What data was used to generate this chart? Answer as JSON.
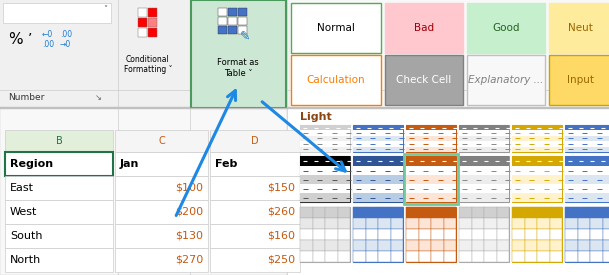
{
  "bg_color": "#f0f0f0",
  "spreadsheet": {
    "col_letters": [
      "B",
      "C",
      "D"
    ],
    "col_letter_colors": [
      "#217346",
      "#c55a11",
      "#c55a11"
    ],
    "col_headers": [
      "Region",
      "Jan",
      "Feb"
    ],
    "rows": [
      [
        "East",
        "$100",
        "$150"
      ],
      [
        "West",
        "$200",
        "$260"
      ],
      [
        "South",
        "$130",
        "$160"
      ],
      [
        "North",
        "$270",
        "$250"
      ]
    ]
  },
  "ribbon_styles": [
    {
      "label": "Normal",
      "bg": "#ffffff",
      "fg": "#000000",
      "border": "#4cae4c",
      "italic": false
    },
    {
      "label": "Bad",
      "bg": "#ffc7ce",
      "fg": "#9c0006",
      "border": "#ffc7ce",
      "italic": false
    },
    {
      "label": "Good",
      "bg": "#c6efce",
      "fg": "#276221",
      "border": "#c6efce",
      "italic": false
    },
    {
      "label": "Neut",
      "bg": "#ffeb9c",
      "fg": "#9c6500",
      "border": "#ffeb9c",
      "italic": false
    },
    {
      "label": "Calculation",
      "bg": "#ffffff",
      "fg": "#fa7d00",
      "border": "#fa7d00",
      "italic": false
    },
    {
      "label": "Check Cell",
      "bg": "#a5a5a5",
      "fg": "#ffffff",
      "border": "#808080",
      "italic": false
    },
    {
      "label": "Explanatory ...",
      "bg": "#f8f8f8",
      "fg": "#808080",
      "border": "#c0c0c0",
      "italic": true
    },
    {
      "label": "Input",
      "bg": "#ffd966",
      "fg": "#9c6500",
      "border": "#c8a400",
      "italic": false
    }
  ],
  "thumb_row1": [
    {
      "hc": "#d0d0d0",
      "sc": "#f0f0f0",
      "lc": "#888888",
      "bc": "#cccccc"
    },
    {
      "hc": "#4472c4",
      "sc": "#dce6f1",
      "lc": "#4472c4",
      "bc": "#4472c4"
    },
    {
      "hc": "#c55a11",
      "sc": "#fce4d6",
      "lc": "#c55a11",
      "bc": "#c55a11"
    },
    {
      "hc": "#808080",
      "sc": "#ededed",
      "lc": "#888888",
      "bc": "#999999"
    },
    {
      "hc": "#d4a800",
      "sc": "#fff2cc",
      "lc": "#d4a800",
      "bc": "#d4a800"
    },
    {
      "hc": "#4472c4",
      "sc": "#dce6f1",
      "lc": "#4472c4",
      "bc": "#4472c4"
    }
  ],
  "thumb_row2": [
    {
      "hc": "#000000",
      "sc": "#d0d0d0",
      "lc": "#555555",
      "bc": "#333333"
    },
    {
      "hc": "#2f5597",
      "sc": "#b8cce4",
      "lc": "#2f5597",
      "bc": "#2f5597"
    },
    {
      "hc": "#c55a11",
      "sc": "#fce4d6",
      "lc": "#c55a11",
      "bc": "#c55a11",
      "highlight": true
    },
    {
      "hc": "#808080",
      "sc": "#ededed",
      "lc": "#888888",
      "bc": "#999999"
    },
    {
      "hc": "#d4a800",
      "sc": "#fff2cc",
      "lc": "#d4a800",
      "bc": "#d4a800"
    },
    {
      "hc": "#4472c4",
      "sc": "#dce6f1",
      "lc": "#4472c4",
      "bc": "#4472c4"
    }
  ],
  "thumb_row3": [
    {
      "hc": "#d0d0d0",
      "sc": "#e8e8e8",
      "lc": "#aaaaaa",
      "bc": "#aaaaaa"
    },
    {
      "hc": "#4472c4",
      "sc": "#dce6f1",
      "lc": "#4472c4",
      "bc": "#4472c4"
    },
    {
      "hc": "#c55a11",
      "sc": "#fce4d6",
      "lc": "#c55a11",
      "bc": "#c55a11"
    },
    {
      "hc": "#d0d0d0",
      "sc": "#f0f0f0",
      "lc": "#aaaaaa",
      "bc": "#aaaaaa"
    },
    {
      "hc": "#d4a800",
      "sc": "#fff2cc",
      "lc": "#d4a800",
      "bc": "#d4a800"
    },
    {
      "hc": "#4472c4",
      "sc": "#dce6f1",
      "lc": "#4472c4",
      "bc": "#4472c4"
    }
  ]
}
